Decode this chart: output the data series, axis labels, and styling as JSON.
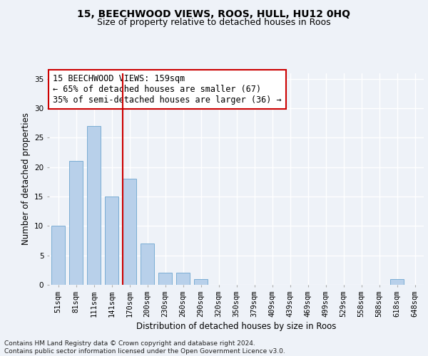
{
  "title1": "15, BEECHWOOD VIEWS, ROOS, HULL, HU12 0HQ",
  "title2": "Size of property relative to detached houses in Roos",
  "xlabel": "Distribution of detached houses by size in Roos",
  "ylabel": "Number of detached properties",
  "categories": [
    "51sqm",
    "81sqm",
    "111sqm",
    "141sqm",
    "170sqm",
    "200sqm",
    "230sqm",
    "260sqm",
    "290sqm",
    "320sqm",
    "350sqm",
    "379sqm",
    "409sqm",
    "439sqm",
    "469sqm",
    "499sqm",
    "529sqm",
    "558sqm",
    "588sqm",
    "618sqm",
    "648sqm"
  ],
  "values": [
    10,
    21,
    27,
    15,
    18,
    7,
    2,
    2,
    1,
    0,
    0,
    0,
    0,
    0,
    0,
    0,
    0,
    0,
    0,
    1,
    0
  ],
  "bar_color": "#b8d0ea",
  "bar_edge_color": "#7aadd4",
  "vline_color": "#cc0000",
  "vline_pos": 3.6,
  "annotation_text": "15 BEECHWOOD VIEWS: 159sqm\n← 65% of detached houses are smaller (67)\n35% of semi-detached houses are larger (36) →",
  "annotation_box_color": "#ffffff",
  "annotation_box_edge": "#cc0000",
  "ylim": [
    0,
    36
  ],
  "yticks": [
    0,
    5,
    10,
    15,
    20,
    25,
    30,
    35
  ],
  "footer": "Contains HM Land Registry data © Crown copyright and database right 2024.\nContains public sector information licensed under the Open Government Licence v3.0.",
  "background_color": "#eef2f8",
  "grid_color": "#ffffff",
  "title_fontsize": 10,
  "subtitle_fontsize": 9,
  "axis_label_fontsize": 8.5,
  "tick_fontsize": 7.5,
  "annotation_fontsize": 8.5,
  "footer_fontsize": 6.5
}
